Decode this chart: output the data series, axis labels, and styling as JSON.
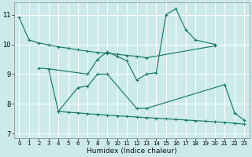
{
  "title": "",
  "xlabel": "Humidex (Indice chaleur)",
  "xlim": [
    -0.5,
    23.5
  ],
  "ylim": [
    6.85,
    11.4
  ],
  "xticks": [
    0,
    1,
    2,
    3,
    4,
    5,
    6,
    7,
    8,
    9,
    10,
    11,
    12,
    13,
    14,
    15,
    16,
    17,
    18,
    19,
    20,
    21,
    22,
    23
  ],
  "yticks": [
    7,
    8,
    9,
    10,
    11
  ],
  "background_color": "#cceaea",
  "grid_color": "#ffffff",
  "line_color": "#1a7a6a",
  "line1_x": [
    0,
    1,
    2,
    3,
    4,
    5,
    6,
    7,
    8,
    9,
    10,
    11,
    12,
    13,
    20
  ],
  "line1_y": [
    10.9,
    10.15,
    10.05,
    9.98,
    9.92,
    9.87,
    9.82,
    9.77,
    9.73,
    9.7,
    9.67,
    9.63,
    9.6,
    9.55,
    9.95
  ],
  "line2_x": [
    2,
    3,
    7,
    8,
    9,
    10,
    11,
    12,
    13,
    14,
    15,
    16,
    17,
    18,
    20
  ],
  "line2_y": [
    9.2,
    9.18,
    9.0,
    9.5,
    9.75,
    9.6,
    9.45,
    8.8,
    9.0,
    9.05,
    11.0,
    11.2,
    10.5,
    10.15,
    10.0
  ],
  "line3_x": [
    3,
    4,
    6,
    7,
    8,
    9,
    12,
    13,
    21,
    22,
    23
  ],
  "line3_y": [
    9.18,
    7.75,
    8.55,
    8.6,
    9.0,
    9.0,
    7.85,
    7.85,
    8.65,
    7.7,
    7.45
  ],
  "line4_x": [
    4,
    5,
    6,
    7,
    8,
    9,
    10,
    11,
    12,
    13,
    14,
    15,
    16,
    17,
    18,
    19,
    20,
    21,
    22,
    23
  ],
  "line4_y": [
    7.75,
    7.72,
    7.7,
    7.67,
    7.65,
    7.62,
    7.6,
    7.58,
    7.56,
    7.54,
    7.52,
    7.5,
    7.48,
    7.46,
    7.44,
    7.42,
    7.4,
    7.38,
    7.35,
    7.32
  ]
}
